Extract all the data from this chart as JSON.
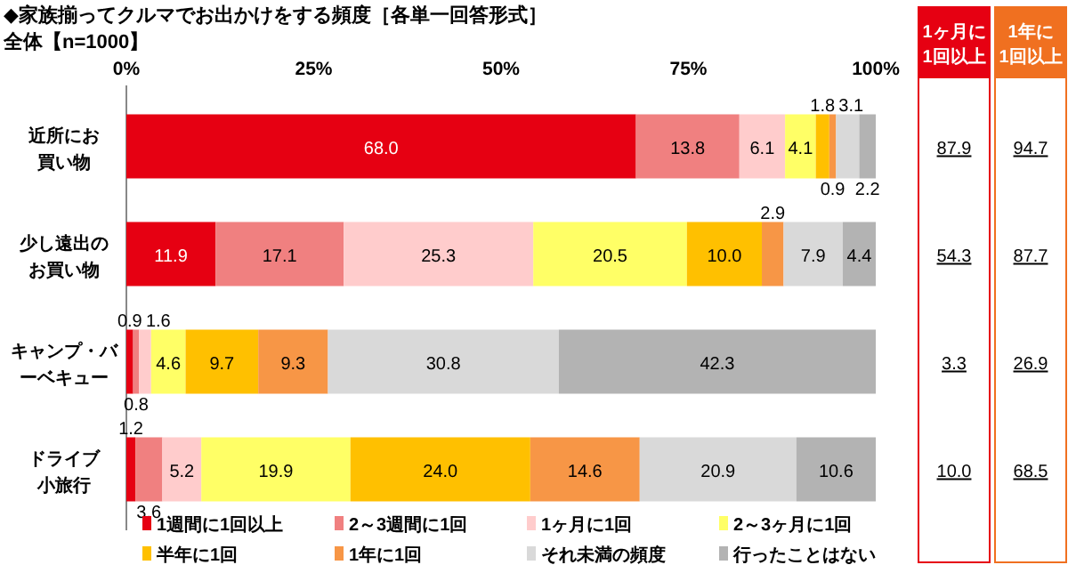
{
  "chart_data": {
    "type": "bar",
    "orientation": "horizontal",
    "stacked": true,
    "title": "◆家族揃ってクルマでお出かけをする頻度［各単一回答形式］",
    "subtitle": "全体【n=1000】",
    "categories": [
      "近所にお買い物",
      "少し遠出のお買い物",
      "キャンプ・バーベキュー",
      "ドライブ小旅行"
    ],
    "series": [
      {
        "name": "1週間に1回以上",
        "color": "#e60012",
        "values": [
          68.0,
          11.9,
          0.9,
          1.2
        ],
        "value_labels": [
          "68.0",
          "11.9",
          "0.9",
          "1.2"
        ]
      },
      {
        "name": "2～3週間に1回",
        "color": "#f08080",
        "values": [
          13.8,
          17.1,
          0.8,
          3.6
        ],
        "value_labels": [
          "13.8",
          "17.1",
          "0.8",
          "3.6"
        ]
      },
      {
        "name": "1ヶ月に1回",
        "color": "#ffcccc",
        "values": [
          6.1,
          25.3,
          1.6,
          5.2
        ],
        "value_labels": [
          "6.1",
          "25.3",
          "1.6",
          "5.2"
        ]
      },
      {
        "name": "2～3ヶ月に1回",
        "color": "#ffff66",
        "values": [
          4.1,
          20.5,
          4.6,
          19.9
        ],
        "value_labels": [
          "4.1",
          "20.5",
          "4.6",
          "19.9"
        ]
      },
      {
        "name": "半年に1回",
        "color": "#ffc000",
        "values": [
          1.8,
          10.0,
          9.7,
          24.0
        ],
        "value_labels": [
          "1.8",
          "10.0",
          "9.7",
          "24.0"
        ]
      },
      {
        "name": "1年に1回",
        "color": "#f79646",
        "values": [
          0.9,
          2.9,
          9.3,
          14.6
        ],
        "value_labels": [
          "0.9",
          "2.9",
          "9.3",
          "14.6"
        ]
      },
      {
        "name": "それ未満の頻度",
        "color": "#d9d9d9",
        "values": [
          3.1,
          7.9,
          30.8,
          20.9
        ],
        "value_labels": [
          "3.1",
          "7.9",
          "30.8",
          "20.9"
        ]
      },
      {
        "name": "行ったことはない",
        "color": "#b3b3b3",
        "values": [
          2.2,
          4.4,
          42.3,
          10.6
        ],
        "value_labels": [
          "2.2",
          "4.4",
          "42.3",
          "10.6"
        ]
      }
    ],
    "xlim": [
      0,
      100
    ],
    "xticks": [
      {
        "value": 0,
        "label": "0%"
      },
      {
        "value": 25,
        "label": "25%"
      },
      {
        "value": 50,
        "label": "50%"
      },
      {
        "value": 75,
        "label": "75%"
      },
      {
        "value": 100,
        "label": "100%"
      }
    ],
    "legend": "bottom",
    "grid": false,
    "annotations": [
      "1ヶ月に\n1回以上",
      "1年に\n1回以上",
      "87.9",
      "94.7",
      "54.3",
      "87.7",
      "3.3",
      "26.9",
      "10.0",
      "68.5"
    ]
  }
}
